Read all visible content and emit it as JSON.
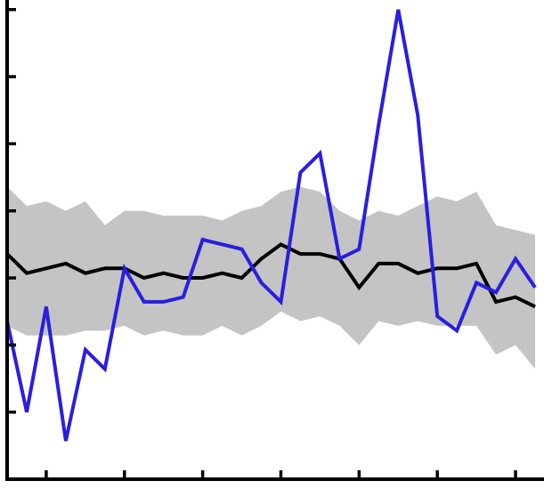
{
  "chart_data": {
    "type": "line",
    "title": "",
    "xlabel": "",
    "ylabel": "",
    "grid": false,
    "legend": "none",
    "x": [
      0,
      1,
      2,
      3,
      4,
      5,
      6,
      7,
      8,
      9,
      10,
      11,
      12,
      13,
      14,
      15,
      16,
      17,
      18,
      19,
      20,
      21,
      22,
      23,
      24,
      25,
      26,
      27
    ],
    "xlim": [
      0,
      27
    ],
    "ylim": [
      0,
      10
    ],
    "xticks": [
      2,
      6,
      10,
      14,
      18,
      22,
      26
    ],
    "yticks": [
      1.4,
      2.8,
      4.2,
      5.6,
      7.0,
      8.4,
      9.8
    ],
    "band": {
      "color": "#c4c4c4",
      "lower": [
        3.2,
        3.0,
        3.0,
        3.0,
        3.1,
        3.1,
        3.2,
        3.0,
        3.1,
        3.0,
        3.0,
        3.2,
        3.0,
        3.2,
        3.5,
        3.3,
        3.4,
        3.2,
        2.8,
        3.3,
        3.2,
        3.3,
        3.2,
        3.2,
        3.2,
        2.6,
        2.8,
        2.3
      ],
      "upper": [
        6.1,
        5.7,
        5.8,
        5.6,
        5.8,
        5.3,
        5.6,
        5.6,
        5.5,
        5.5,
        5.5,
        5.4,
        5.6,
        5.7,
        6.0,
        6.1,
        6.0,
        5.6,
        5.4,
        5.6,
        5.5,
        5.7,
        5.9,
        5.8,
        6.0,
        5.3,
        5.2,
        5.1
      ]
    },
    "series": [
      {
        "color": "#000000",
        "values": [
          4.7,
          4.3,
          4.4,
          4.5,
          4.3,
          4.4,
          4.4,
          4.2,
          4.3,
          4.2,
          4.2,
          4.3,
          4.2,
          4.6,
          4.9,
          4.7,
          4.7,
          4.6,
          4.0,
          4.5,
          4.5,
          4.3,
          4.4,
          4.4,
          4.5,
          3.7,
          3.8,
          3.6
        ]
      },
      {
        "color": "#2a1ee0",
        "values": [
          3.3,
          1.4,
          3.6,
          0.8,
          2.7,
          2.3,
          4.4,
          3.7,
          3.7,
          3.8,
          5.0,
          4.9,
          4.8,
          4.1,
          3.7,
          6.4,
          6.8,
          4.6,
          4.8,
          7.4,
          9.8,
          7.6,
          3.4,
          3.1,
          4.1,
          3.9,
          4.6,
          4.0
        ]
      }
    ]
  }
}
